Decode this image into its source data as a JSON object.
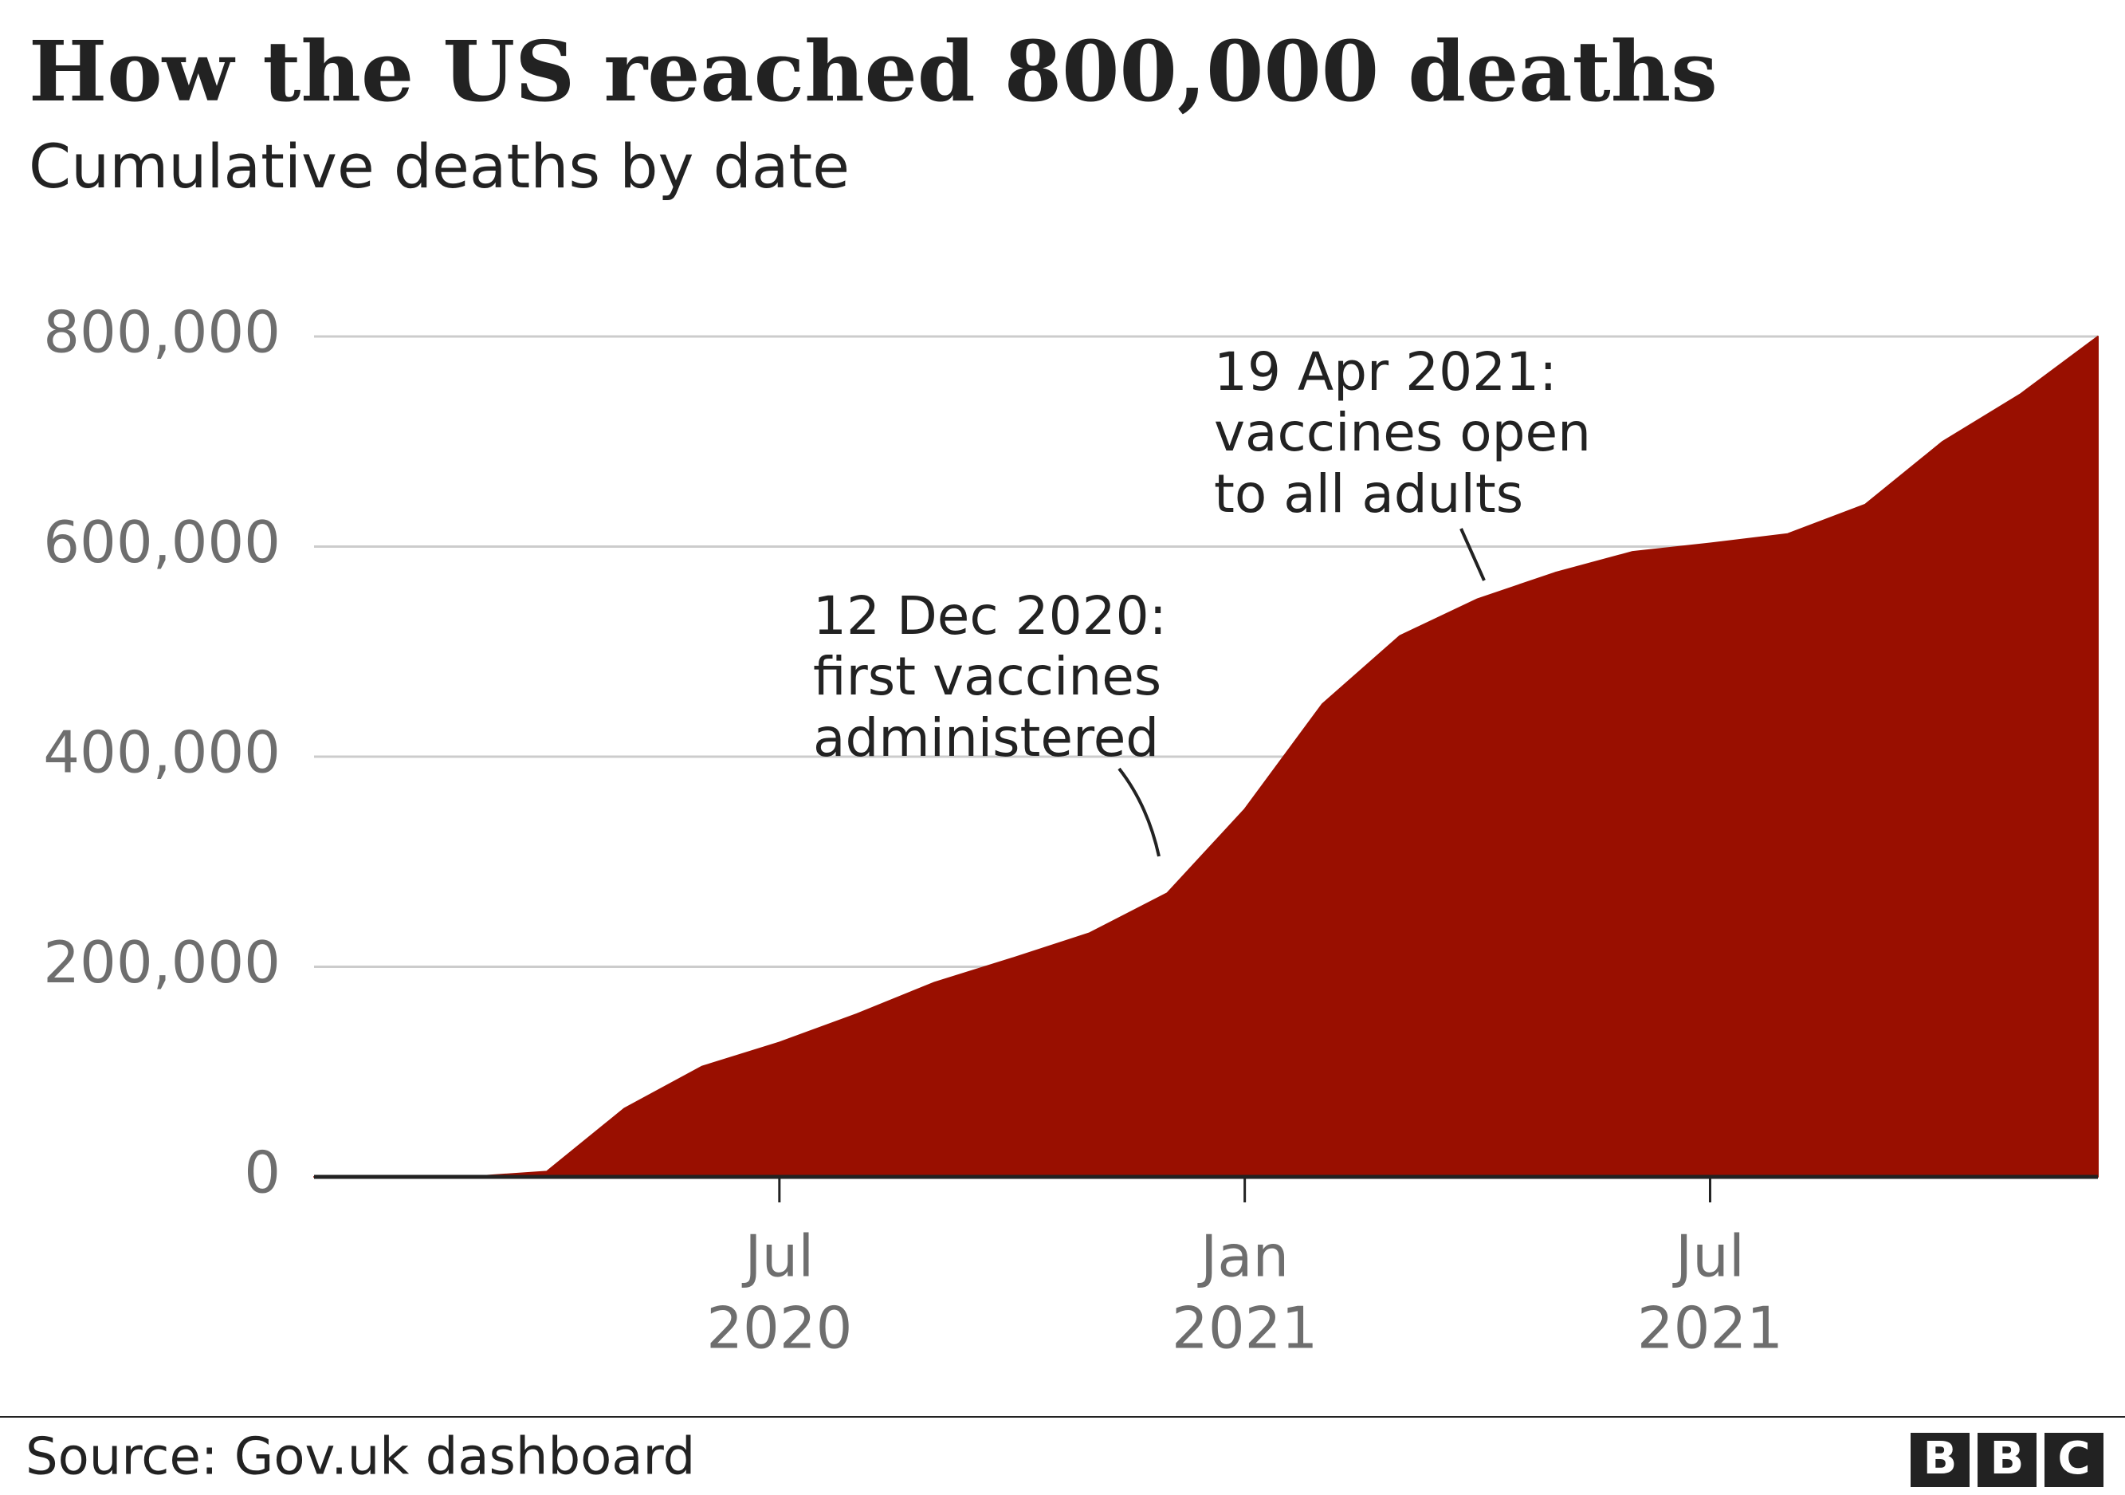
{
  "chart_data": {
    "type": "area",
    "title": "How the US reached 800,000 deaths",
    "subtitle": "Cumulative deaths by date",
    "source": "Source: Gov.uk dashboard",
    "logo": [
      "B",
      "B",
      "C"
    ],
    "x": [
      "2020-01",
      "2020-02",
      "2020-03",
      "2020-04",
      "2020-05",
      "2020-06",
      "2020-07",
      "2020-08",
      "2020-09",
      "2020-10",
      "2020-11",
      "2020-12",
      "2021-01",
      "2021-02",
      "2021-03",
      "2021-04",
      "2021-05",
      "2021-06",
      "2021-07",
      "2021-08",
      "2021-09",
      "2021-10",
      "2021-11",
      "2021-12"
    ],
    "values": [
      0,
      0,
      0,
      5000,
      65000,
      105000,
      128000,
      155000,
      185000,
      208000,
      232000,
      270000,
      350000,
      450000,
      515000,
      550000,
      575000,
      595000,
      603000,
      612000,
      640000,
      700000,
      745000,
      800000
    ],
    "color": "#990f00",
    "xlim": [
      "2020-01",
      "2021-12"
    ],
    "xticks": [
      {
        "value": "2020-07",
        "label": [
          "Jul",
          "2020"
        ]
      },
      {
        "value": "2021-01",
        "label": [
          "Jan",
          "2021"
        ]
      },
      {
        "value": "2021-07",
        "label": [
          "Jul",
          "2021"
        ]
      }
    ],
    "ylim": [
      0,
      800000
    ],
    "yticks": [
      0,
      {
        "value": 200000,
        "label": "200,000"
      },
      {
        "value": 400000,
        "label": "400,000"
      },
      {
        "value": 600000,
        "label": "600,000"
      },
      {
        "value": 800000,
        "label": "800,000"
      }
    ],
    "grid": true,
    "annotations": [
      {
        "text": [
          "12 Dec 2020:",
          "first vaccines",
          "administered"
        ]
      },
      {
        "text": [
          "19 Apr 2021:",
          "vaccines open",
          "to all adults"
        ]
      }
    ]
  }
}
